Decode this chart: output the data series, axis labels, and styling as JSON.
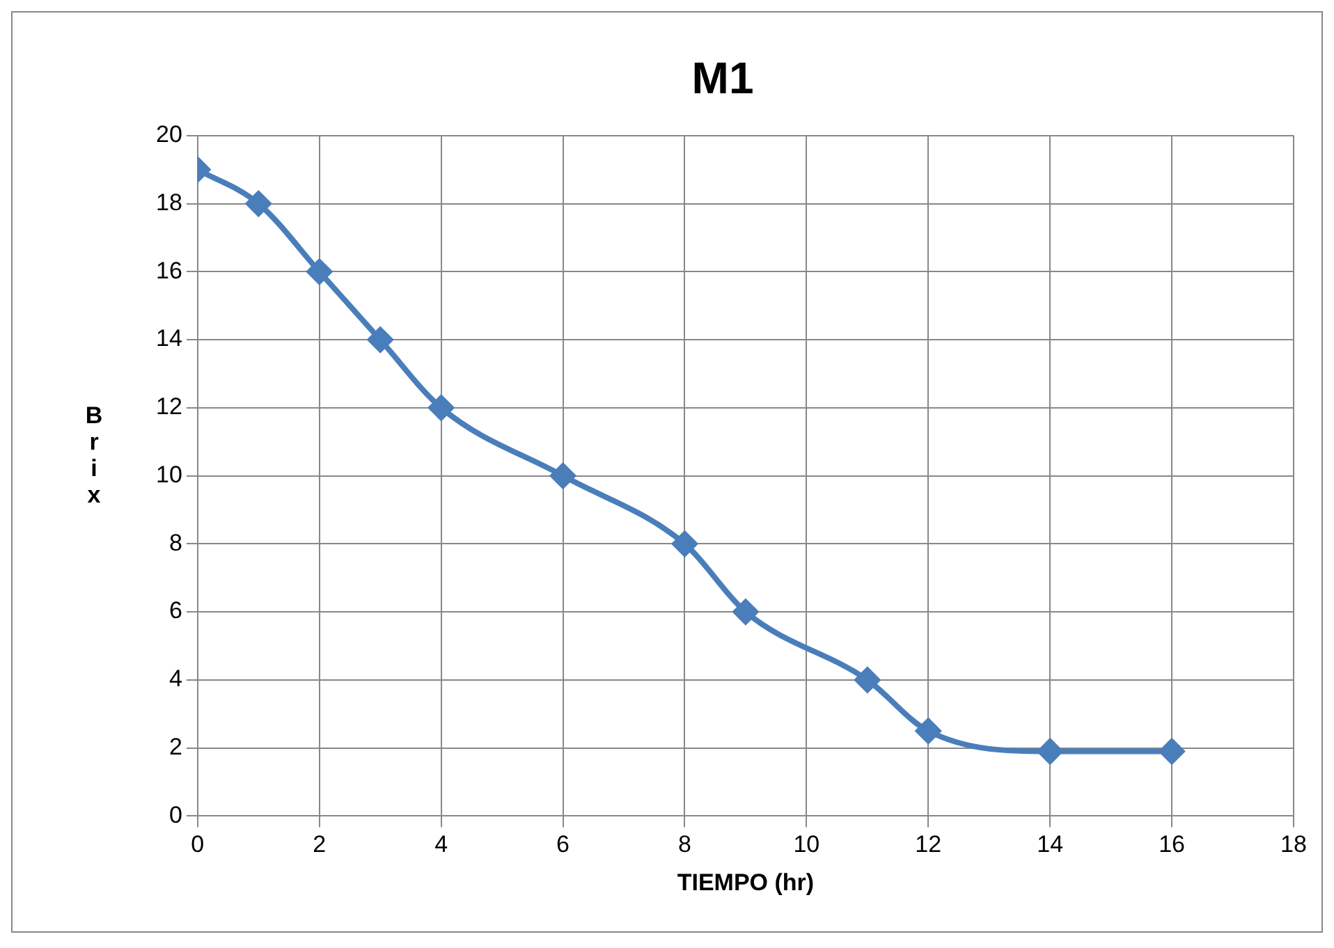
{
  "chart_data": {
    "type": "line",
    "title": "M1",
    "xlabel": "TIEMPO (hr)",
    "ylabel": "Brix",
    "x": [
      0,
      1,
      2,
      3,
      4,
      6,
      8,
      9,
      11,
      12,
      14,
      16
    ],
    "series": [
      {
        "color": "#4a7ebb",
        "values": [
          19,
          18,
          16,
          14,
          12,
          10,
          8,
          6,
          4,
          2.5,
          1.9,
          1.9
        ]
      }
    ],
    "xlim": [
      0,
      18
    ],
    "xticks": [
      0,
      2,
      4,
      6,
      8,
      10,
      12,
      14,
      16,
      18
    ],
    "ylim": [
      0,
      20
    ],
    "yticks": [
      0,
      2,
      4,
      6,
      8,
      10,
      12,
      14,
      16,
      18,
      20
    ],
    "grid": true,
    "legend": false,
    "marker": "diamond",
    "line_style": "solid"
  }
}
